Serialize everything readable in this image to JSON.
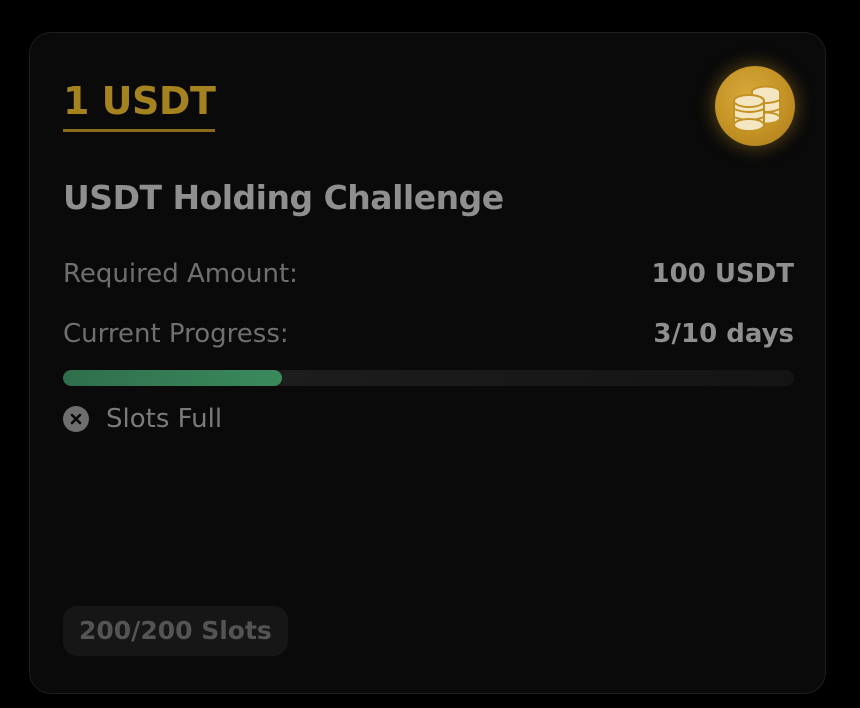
{
  "card": {
    "reward": "1 USDT",
    "icon": "coins-icon",
    "title": "USDT Holding Challenge",
    "required": {
      "label": "Required Amount:",
      "value": "100 USDT"
    },
    "progress": {
      "label": "Current Progress:",
      "value": "3/10 days",
      "fraction": 0.3
    },
    "status": {
      "icon": "x-circle-icon",
      "text": "Slots Full"
    },
    "slots": "200/200 Slots"
  },
  "colors": {
    "accent_gold": "#a4821f",
    "progress_green": "#3a8a5c",
    "background": "#000000"
  }
}
